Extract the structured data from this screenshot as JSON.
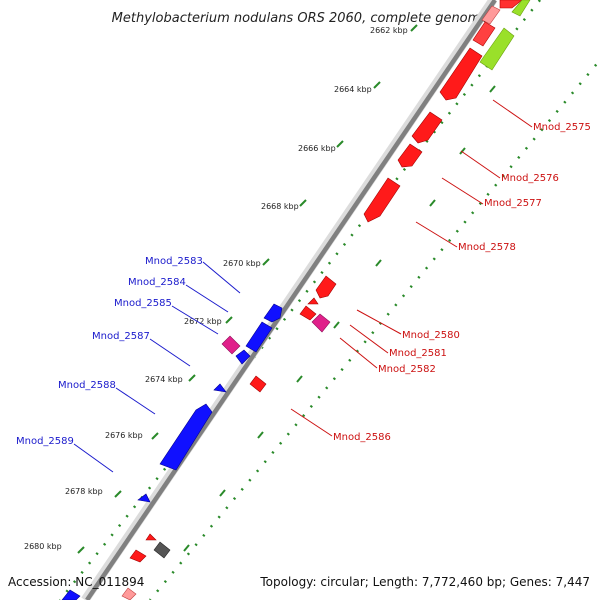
{
  "title": "Methylobacterium nodulans ORS 2060, complete genome",
  "footer": {
    "accession": "Accession: NC_011894",
    "summary": "Topology: circular; Length: 7,772,460 bp; Genes: 7,447"
  },
  "colors": {
    "forward_gene": "#e01010",
    "reverse_gene": "#1010e0",
    "rna_gene": "#e0208a",
    "other_feature": "#9ae02a",
    "pseudo_gene": "#555555",
    "backbone": "#909090",
    "scale_dots": "#2a8a2a",
    "label_blue": "#1a1acc",
    "label_red": "#cc1111"
  },
  "scale": {
    "ticks": [
      "2662 kbp",
      "2664 kbp",
      "2666 kbp",
      "2668 kbp",
      "2670 kbp",
      "2672 kbp",
      "2674 kbp",
      "2676 kbp",
      "2678 kbp",
      "2680 kbp"
    ]
  },
  "gene_labels": {
    "left": [
      "Mnod_2583",
      "Mnod_2584",
      "Mnod_2585",
      "Mnod_2587",
      "Mnod_2588",
      "Mnod_2589"
    ],
    "right": [
      "Mnod_2575",
      "Mnod_2576",
      "Mnod_2577",
      "Mnod_2578",
      "Mnod_2580",
      "Mnod_2581",
      "Mnod_2582",
      "Mnod_2586"
    ]
  }
}
